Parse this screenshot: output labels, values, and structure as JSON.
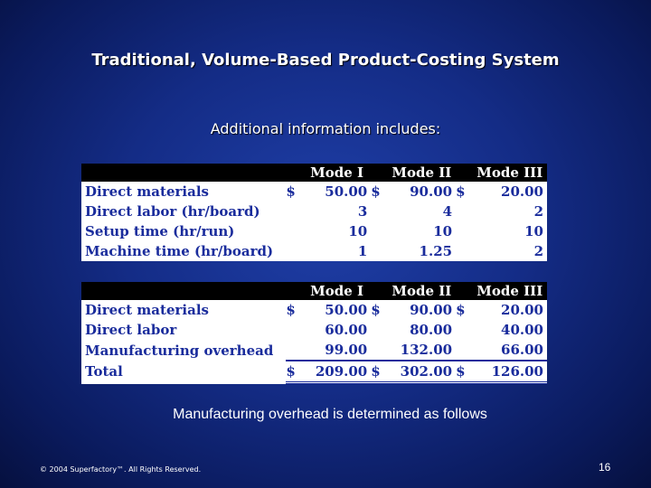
{
  "title": "Traditional, Volume-Based Product-Costing System",
  "subtitle": "Additional information includes:",
  "table1": {
    "headers": [
      "Mode I",
      "Mode II",
      "Mode III"
    ],
    "rows": [
      {
        "label": "Direct materials",
        "d1": "$",
        "v1": "50.00",
        "d2": "$",
        "v2": "90.00",
        "d3": "$",
        "v3": "20.00"
      },
      {
        "label": "Direct labor (hr/board)",
        "d1": "",
        "v1": "3",
        "d2": "",
        "v2": "4",
        "d3": "",
        "v3": "2"
      },
      {
        "label": "Setup time (hr/run)",
        "d1": "",
        "v1": "10",
        "d2": "",
        "v2": "10",
        "d3": "",
        "v3": "10"
      },
      {
        "label": "Machine time (hr/board)",
        "d1": "",
        "v1": "1",
        "d2": "",
        "v2": "1.25",
        "d3": "",
        "v3": "2"
      }
    ]
  },
  "table2": {
    "headers": [
      "Mode I",
      "Mode II",
      "Mode III"
    ],
    "rows": [
      {
        "label": "Direct materials",
        "d1": "$",
        "v1": "50.00",
        "d2": "$",
        "v2": "90.00",
        "d3": "$",
        "v3": "20.00"
      },
      {
        "label": "Direct labor",
        "d1": "",
        "v1": "60.00",
        "d2": "",
        "v2": "80.00",
        "d3": "",
        "v3": "40.00"
      },
      {
        "label": "Manufacturing overhead",
        "d1": "",
        "v1": "99.00",
        "d2": "",
        "v2": "132.00",
        "d3": "",
        "v3": "66.00"
      }
    ],
    "total": {
      "label": "Total",
      "d1": "$",
      "v1": "209.00",
      "d2": "$",
      "v2": "302.00",
      "d3": "$",
      "v3": "126.00"
    }
  },
  "caption": "Manufacturing overhead is determined as follows",
  "footer": "© 2004 Superfactory™. All Rights Reserved.",
  "page_number": "16"
}
